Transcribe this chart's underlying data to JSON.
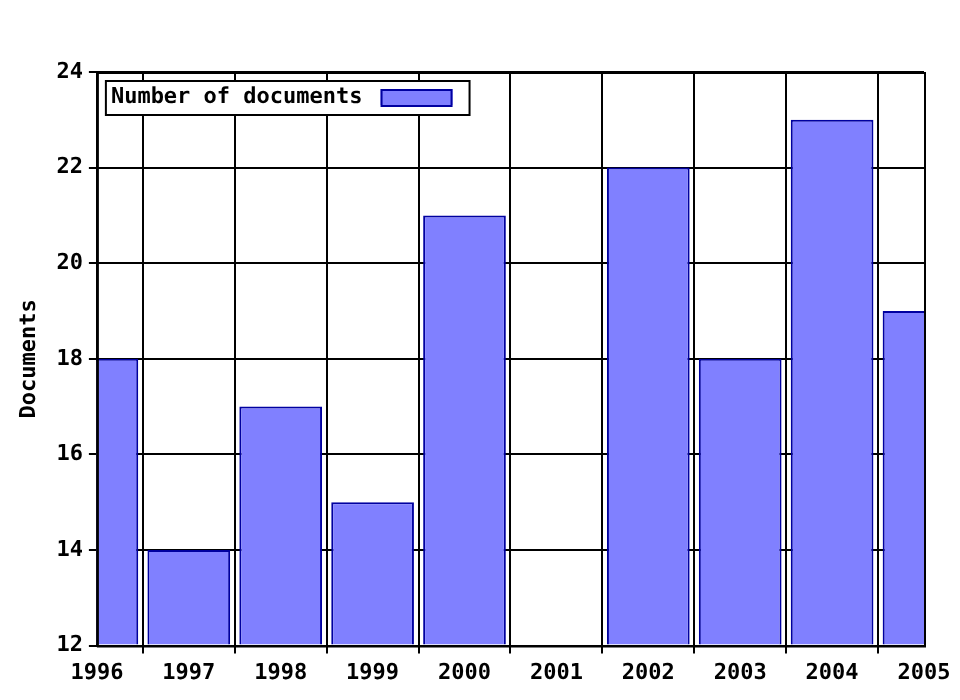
{
  "chart_data": {
    "type": "bar",
    "ylabel": "Documents",
    "x": [
      1996,
      1997,
      1998,
      1999,
      2000,
      2001,
      2002,
      2003,
      2004,
      2005
    ],
    "series": [
      {
        "name": "Number of documents",
        "color": "#8080ff",
        "values": [
          18,
          14,
          17,
          15,
          21,
          null,
          22,
          18,
          23,
          19
        ]
      }
    ],
    "xlim": [
      1996,
      2005
    ],
    "xticks": [
      1996,
      1997,
      1998,
      1999,
      2000,
      2001,
      2002,
      2003,
      2004,
      2005
    ],
    "ylim": [
      12,
      24
    ],
    "yticks": [
      12,
      14,
      16,
      18,
      20,
      22,
      24
    ],
    "grid": true,
    "legend": "top left"
  }
}
